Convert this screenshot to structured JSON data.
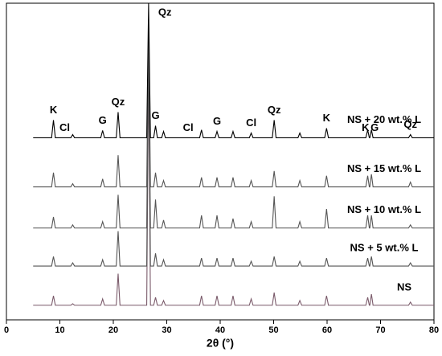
{
  "chart_data": {
    "type": "line",
    "x": [
      5,
      8.45,
      8.8,
      9.15,
      12.05,
      12.4,
      12.75,
      17.65,
      18.0,
      18.35,
      20.55,
      20.9,
      21.25,
      26.25,
      26.6,
      26.95,
      27.55,
      27.9,
      28.25,
      29.05,
      29.4,
      29.75,
      36.15,
      36.5,
      36.85,
      39.05,
      39.4,
      39.75,
      42.05,
      42.4,
      42.75,
      45.45,
      45.8,
      46.15,
      49.75,
      50.1,
      50.45,
      54.55,
      54.9,
      55.25,
      59.55,
      59.9,
      60.25,
      67.25,
      67.6,
      67.9,
      68.0,
      68.3,
      68.6,
      75.25,
      75.6,
      75.95,
      80
    ],
    "series": [
      {
        "name": "NS + 20 wt.% L",
        "color": "#000000",
        "values": [
          57.5,
          57.5,
          63.1,
          57.5,
          57.5,
          58.5,
          57.5,
          57.5,
          59.8,
          57.5,
          57.5,
          65.6,
          57.5,
          57.5,
          100,
          57.5,
          57.5,
          61.3,
          57.5,
          57.5,
          59.5,
          57.5,
          57.5,
          60,
          57.5,
          57.5,
          59.5,
          57.5,
          57.5,
          59.5,
          57.5,
          57.5,
          59,
          57.5,
          57.5,
          63.1,
          57.5,
          57.5,
          59,
          57.5,
          57.5,
          60.5,
          57.5,
          57.5,
          60,
          57.5,
          57.5,
          60,
          57.5,
          57.5,
          58.5,
          57.5,
          57.5
        ]
      },
      {
        "name": "NS + 15 wt.% L",
        "color": "#555555",
        "values": [
          42,
          42,
          46.5,
          42,
          42,
          43,
          42,
          42,
          44.5,
          42,
          42,
          52,
          42,
          42,
          95,
          42,
          42,
          46.5,
          42,
          42,
          44,
          42,
          42,
          45,
          42,
          42,
          45,
          42,
          42,
          45,
          42,
          42,
          44,
          42,
          42,
          47,
          42,
          42,
          44,
          42,
          42,
          45.5,
          42,
          42,
          45.5,
          42,
          42,
          46,
          42,
          42,
          43.5,
          42,
          42
        ]
      },
      {
        "name": "NS + 10 wt.% L",
        "color": "#555555",
        "values": [
          29,
          29,
          32.5,
          29,
          29,
          30,
          29,
          29,
          31,
          29,
          29,
          39.5,
          29,
          29,
          90,
          29,
          29,
          38,
          29,
          29,
          31.5,
          29,
          29,
          33,
          29,
          29,
          33,
          29,
          29,
          32,
          29,
          29,
          31,
          29,
          29,
          39,
          29,
          29,
          31,
          29,
          29,
          35,
          29,
          29,
          33,
          29,
          29,
          33,
          29,
          29,
          30,
          29,
          29
        ]
      },
      {
        "name": "NS + 5 wt.% L",
        "color": "#555555",
        "values": [
          17,
          17,
          20,
          17,
          17,
          18,
          17,
          17,
          19,
          17,
          17,
          28,
          17,
          17,
          85,
          17,
          17,
          21,
          17,
          17,
          19,
          17,
          17,
          19.5,
          17,
          17,
          19.5,
          17,
          17,
          19.5,
          17,
          17,
          18.5,
          17,
          17,
          20,
          17,
          17,
          18.5,
          17,
          17,
          19.5,
          17,
          17,
          19.5,
          17,
          17,
          20,
          17,
          17,
          18,
          17,
          17
        ]
      },
      {
        "name": "NS",
        "color": "#7a5a6a",
        "values": [
          4.6,
          4.6,
          7.6,
          4.6,
          4.6,
          5.1,
          4.6,
          4.6,
          6.6,
          4.6,
          4.6,
          14.6,
          4.6,
          4.6,
          80,
          4.6,
          4.6,
          7.1,
          4.6,
          4.6,
          6.1,
          4.6,
          4.6,
          7.6,
          4.6,
          4.6,
          7.6,
          4.6,
          4.6,
          7.6,
          4.6,
          4.6,
          6.6,
          4.6,
          4.6,
          8.6,
          4.6,
          4.6,
          6.1,
          4.6,
          4.6,
          7.6,
          4.6,
          4.6,
          7.1,
          4.6,
          4.6,
          8.1,
          4.6,
          4.6,
          5.6,
          4.6,
          4.6
        ]
      }
    ],
    "annotations": [
      {
        "text": "K",
        "x": 8.8
      },
      {
        "text": "Cl",
        "x": 10.9
      },
      {
        "text": "G",
        "x": 18.0
      },
      {
        "text": "Qz",
        "x": 20.9
      },
      {
        "text": "Qz",
        "x": 26.6
      },
      {
        "text": "G",
        "x": 27.9
      },
      {
        "text": "Cl",
        "x": 34.0
      },
      {
        "text": "G",
        "x": 39.4
      },
      {
        "text": "Cl",
        "x": 45.8
      },
      {
        "text": "Qz",
        "x": 50.1
      },
      {
        "text": "K",
        "x": 59.9
      },
      {
        "text": "K",
        "x": 67.2
      },
      {
        "text": "G",
        "x": 68.9
      },
      {
        "text": "Qz",
        "x": 75.6
      }
    ],
    "x_label": "2θ (°)",
    "xlim": [
      0,
      80
    ],
    "xticks": [
      0,
      10,
      20,
      30,
      40,
      50,
      60,
      70,
      80
    ],
    "ylim": [
      0,
      100
    ]
  }
}
